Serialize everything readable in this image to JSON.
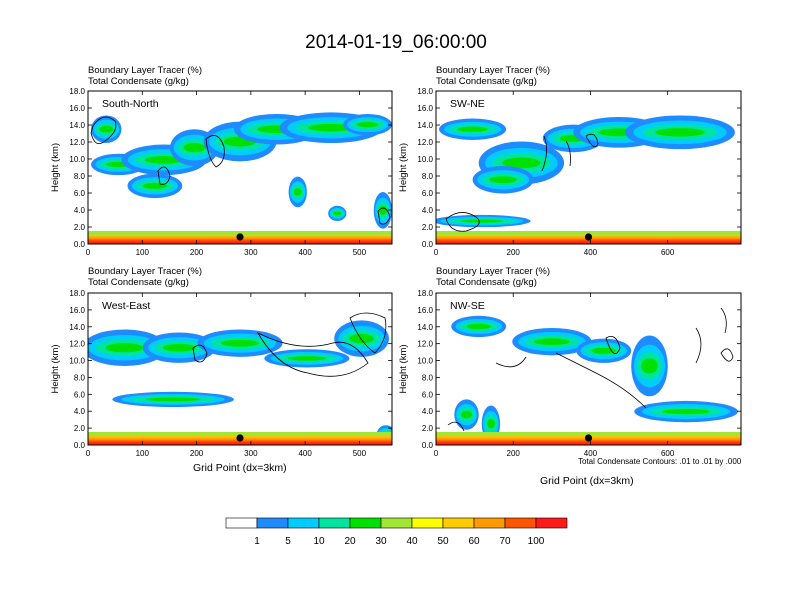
{
  "title": "2014-01-19_06:00:00",
  "chart_data": [
    {
      "type": "heatmap",
      "panel": "top-left",
      "label": "South-North",
      "subtitle_1": "Boundary Layer Tracer   (%)",
      "subtitle_2": "Total Condensate   (g/kg)",
      "ylabel": "Height (km)",
      "xlabel": "",
      "ylim": [
        0,
        18
      ],
      "yticks": [
        "0.0",
        "2.0",
        "4.0",
        "6.0",
        "8.0",
        "10.0",
        "12.0",
        "14.0",
        "16.0",
        "18.0"
      ],
      "xlim": [
        0,
        560
      ],
      "xticks": [
        0,
        100,
        200,
        300,
        400,
        500
      ],
      "marker_x": 280
    },
    {
      "type": "heatmap",
      "panel": "top-right",
      "label": "SW-NE",
      "subtitle_1": "Boundary Layer Tracer   (%)",
      "subtitle_2": "Total Condensate   (g/kg)",
      "ylabel": "Height (km)",
      "xlabel": "",
      "ylim": [
        0,
        18
      ],
      "yticks": [
        "0.0",
        "2.0",
        "4.0",
        "6.0",
        "8.0",
        "10.0",
        "12.0",
        "14.0",
        "16.0",
        "18.0"
      ],
      "xlim": [
        0,
        790
      ],
      "xticks": [
        0,
        200,
        400,
        600
      ],
      "marker_x": 395
    },
    {
      "type": "heatmap",
      "panel": "bottom-left",
      "label": "West-East",
      "subtitle_1": "Boundary Layer Tracer   (%)",
      "subtitle_2": "Total Condensate   (g/kg)",
      "ylabel": "Height (km)",
      "xlabel": "Grid Point (dx=3km)",
      "ylim": [
        0,
        18
      ],
      "yticks": [
        "0.0",
        "2.0",
        "4.0",
        "6.0",
        "8.0",
        "10.0",
        "12.0",
        "14.0",
        "16.0",
        "18.0"
      ],
      "xlim": [
        0,
        560
      ],
      "xticks": [
        0,
        100,
        200,
        300,
        400,
        500
      ],
      "marker_x": 280
    },
    {
      "type": "heatmap",
      "panel": "bottom-right",
      "label": "NW-SE",
      "subtitle_1": "Boundary Layer Tracer   (%)",
      "subtitle_2": "Total Condensate   (g/kg)",
      "ylabel": "Height (km)",
      "xlabel": "Grid Point (dx=3km)",
      "ylim": [
        0,
        18
      ],
      "yticks": [
        "0.0",
        "2.0",
        "4.0",
        "6.0",
        "8.0",
        "10.0",
        "12.0",
        "14.0",
        "16.0",
        "18.0"
      ],
      "xlim": [
        0,
        790
      ],
      "xticks": [
        0,
        200,
        400,
        600
      ],
      "marker_x": 395,
      "note": "Total Condensate Contours: .01 to .01 by .000"
    }
  ],
  "legend": {
    "colors": [
      "#ffffff",
      "#1e8cff",
      "#00ccff",
      "#00e4a0",
      "#00e000",
      "#a0e632",
      "#ffff00",
      "#ffcc00",
      "#ff9900",
      "#ff5500",
      "#ff1a1a"
    ],
    "labels": [
      "1",
      "5",
      "10",
      "20",
      "30",
      "40",
      "50",
      "60",
      "70",
      "100"
    ]
  }
}
